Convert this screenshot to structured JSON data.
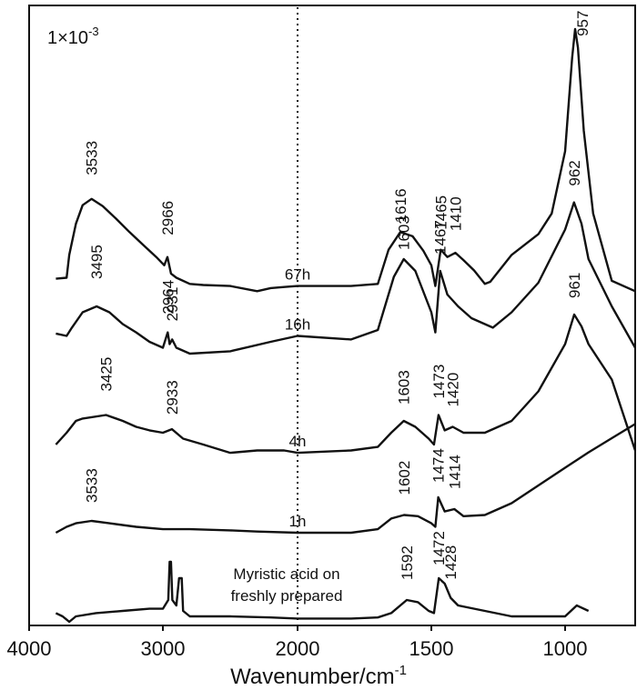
{
  "chart_data": {
    "type": "line",
    "xlabel_main": "Wavenumber/cm",
    "xlabel_sup": "-1",
    "xlim": [
      4000,
      700
    ],
    "x_reversed": true,
    "xticks": [
      4000,
      3000,
      2000,
      1500,
      1000
    ],
    "xtick_labels": [
      "4000",
      "3000",
      "2000",
      "1500",
      "1000"
    ],
    "reference_line_x": 2000,
    "scale_base": "1×10",
    "scale_exp": "-3",
    "annotation_lines": [
      "Myristic acid on",
      "freshly prepared"
    ],
    "series": [
      {
        "name": "67h",
        "points": [
          [
            3800,
            17
          ],
          [
            3720,
            18
          ],
          [
            3700,
            40
          ],
          [
            3650,
            70
          ],
          [
            3600,
            88
          ],
          [
            3533,
            94
          ],
          [
            3450,
            87
          ],
          [
            3350,
            75
          ],
          [
            3250,
            62
          ],
          [
            3150,
            50
          ],
          [
            3050,
            38
          ],
          [
            2990,
            30
          ],
          [
            2966,
            38
          ],
          [
            2940,
            22
          ],
          [
            2900,
            18
          ],
          [
            2800,
            12
          ],
          [
            2700,
            11
          ],
          [
            2500,
            10
          ],
          [
            2300,
            5
          ],
          [
            2200,
            8
          ],
          [
            2100,
            9
          ],
          [
            2000,
            10
          ],
          [
            1800,
            10
          ],
          [
            1700,
            12
          ],
          [
            1660,
            45
          ],
          [
            1616,
            62
          ],
          [
            1570,
            58
          ],
          [
            1530,
            44
          ],
          [
            1500,
            30
          ],
          [
            1485,
            10
          ],
          [
            1465,
            45
          ],
          [
            1440,
            38
          ],
          [
            1410,
            42
          ],
          [
            1380,
            35
          ],
          [
            1340,
            25
          ],
          [
            1300,
            12
          ],
          [
            1280,
            14
          ],
          [
            1200,
            40
          ],
          [
            1100,
            60
          ],
          [
            1050,
            80
          ],
          [
            1000,
            140
          ],
          [
            970,
            230
          ],
          [
            957,
            258
          ],
          [
            945,
            240
          ],
          [
            920,
            160
          ],
          [
            880,
            80
          ],
          [
            800,
            15
          ],
          [
            700,
            5
          ]
        ]
      },
      {
        "name": "16h",
        "points": [
          [
            3800,
            27
          ],
          [
            3720,
            25
          ],
          [
            3680,
            32
          ],
          [
            3600,
            45
          ],
          [
            3495,
            50
          ],
          [
            3400,
            45
          ],
          [
            3300,
            35
          ],
          [
            3200,
            28
          ],
          [
            3100,
            20
          ],
          [
            3000,
            15
          ],
          [
            2964,
            28
          ],
          [
            2950,
            18
          ],
          [
            2931,
            22
          ],
          [
            2900,
            15
          ],
          [
            2800,
            10
          ],
          [
            2500,
            12
          ],
          [
            2200,
            20
          ],
          [
            2000,
            25
          ],
          [
            1800,
            22
          ],
          [
            1700,
            30
          ],
          [
            1640,
            75
          ],
          [
            1603,
            90
          ],
          [
            1560,
            80
          ],
          [
            1500,
            45
          ],
          [
            1485,
            28
          ],
          [
            1467,
            80
          ],
          [
            1440,
            60
          ],
          [
            1400,
            50
          ],
          [
            1350,
            40
          ],
          [
            1300,
            35
          ],
          [
            1270,
            32
          ],
          [
            1200,
            45
          ],
          [
            1100,
            70
          ],
          [
            1000,
            115
          ],
          [
            962,
            138
          ],
          [
            930,
            120
          ],
          [
            900,
            90
          ],
          [
            850,
            70
          ],
          [
            800,
            50
          ],
          [
            700,
            15
          ]
        ]
      },
      {
        "name": "4h",
        "points": [
          [
            3800,
            10
          ],
          [
            3720,
            20
          ],
          [
            3650,
            30
          ],
          [
            3600,
            32
          ],
          [
            3425,
            35
          ],
          [
            3300,
            30
          ],
          [
            3200,
            25
          ],
          [
            3100,
            22
          ],
          [
            3000,
            20
          ],
          [
            2933,
            23
          ],
          [
            2850,
            15
          ],
          [
            2700,
            10
          ],
          [
            2500,
            3
          ],
          [
            2300,
            5
          ],
          [
            2100,
            5
          ],
          [
            2000,
            3
          ],
          [
            1800,
            5
          ],
          [
            1700,
            8
          ],
          [
            1650,
            20
          ],
          [
            1603,
            30
          ],
          [
            1560,
            25
          ],
          [
            1510,
            15
          ],
          [
            1490,
            10
          ],
          [
            1473,
            35
          ],
          [
            1450,
            22
          ],
          [
            1420,
            25
          ],
          [
            1380,
            20
          ],
          [
            1300,
            20
          ],
          [
            1200,
            30
          ],
          [
            1100,
            55
          ],
          [
            1000,
            95
          ],
          [
            961,
            120
          ],
          [
            930,
            110
          ],
          [
            900,
            95
          ],
          [
            850,
            80
          ],
          [
            800,
            65
          ],
          [
            700,
            5
          ]
        ]
      },
      {
        "name": "1h",
        "points": [
          [
            3800,
            0
          ],
          [
            3720,
            5
          ],
          [
            3650,
            8
          ],
          [
            3533,
            10
          ],
          [
            3400,
            8
          ],
          [
            3200,
            5
          ],
          [
            3000,
            3
          ],
          [
            2800,
            3
          ],
          [
            2500,
            2
          ],
          [
            2300,
            1
          ],
          [
            2000,
            0
          ],
          [
            1800,
            0
          ],
          [
            1700,
            3
          ],
          [
            1650,
            12
          ],
          [
            1602,
            15
          ],
          [
            1550,
            14
          ],
          [
            1500,
            8
          ],
          [
            1485,
            5
          ],
          [
            1474,
            30
          ],
          [
            1450,
            18
          ],
          [
            1414,
            20
          ],
          [
            1380,
            14
          ],
          [
            1300,
            15
          ],
          [
            1200,
            25
          ],
          [
            1100,
            40
          ],
          [
            1000,
            55
          ],
          [
            900,
            68
          ],
          [
            800,
            80
          ],
          [
            700,
            92
          ]
        ]
      },
      {
        "name": "Myristic acid on freshly prepared",
        "points": [
          [
            3800,
            8
          ],
          [
            3750,
            5
          ],
          [
            3720,
            2
          ],
          [
            3700,
            0
          ],
          [
            3650,
            5
          ],
          [
            3500,
            8
          ],
          [
            3300,
            10
          ],
          [
            3100,
            12
          ],
          [
            3000,
            12
          ],
          [
            2960,
            20
          ],
          [
            2950,
            55
          ],
          [
            2940,
            55
          ],
          [
            2930,
            20
          ],
          [
            2900,
            15
          ],
          [
            2880,
            40
          ],
          [
            2860,
            40
          ],
          [
            2850,
            10
          ],
          [
            2800,
            5
          ],
          [
            2500,
            5
          ],
          [
            2200,
            4
          ],
          [
            2000,
            3
          ],
          [
            1800,
            3
          ],
          [
            1700,
            4
          ],
          [
            1650,
            8
          ],
          [
            1592,
            20
          ],
          [
            1550,
            18
          ],
          [
            1510,
            10
          ],
          [
            1490,
            8
          ],
          [
            1472,
            40
          ],
          [
            1450,
            35
          ],
          [
            1428,
            22
          ],
          [
            1400,
            15
          ],
          [
            1300,
            10
          ],
          [
            1200,
            5
          ],
          [
            1100,
            5
          ],
          [
            1000,
            5
          ],
          [
            950,
            15
          ],
          [
            900,
            10
          ]
        ]
      }
    ],
    "peak_labels": [
      "3533",
      "2966",
      "1616",
      "1465",
      "1410",
      "957",
      "3495",
      "2964",
      "2931",
      "1603",
      "1467",
      "962",
      "3425",
      "2933",
      "1603",
      "1473",
      "1420",
      "961",
      "3533",
      "1602",
      "1474",
      "1414",
      "1592",
      "1472",
      "1428"
    ]
  }
}
